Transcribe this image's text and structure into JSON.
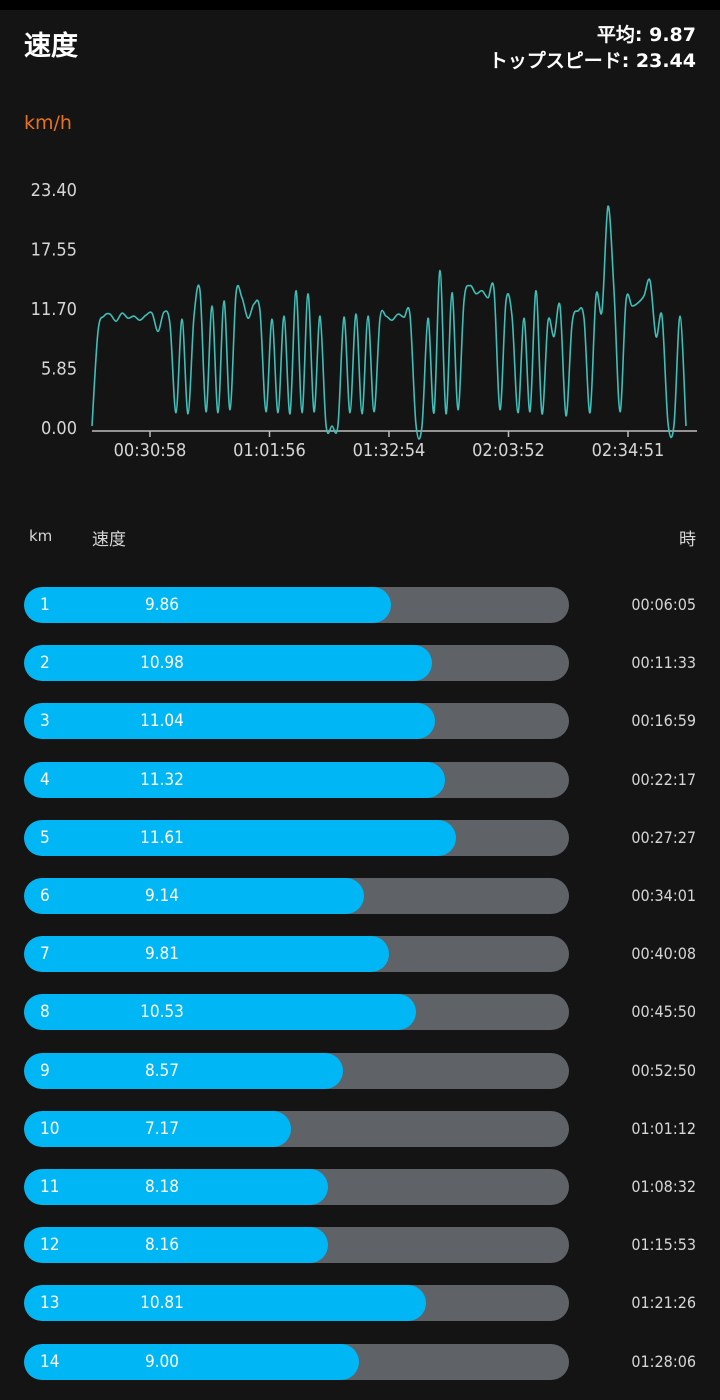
{
  "header": {
    "title": "速度",
    "average_label": "平均: 9.87",
    "top_speed_label": "トップスピード: 23.44"
  },
  "chart": {
    "unit": "km/h"
  },
  "chart_data": {
    "type": "line",
    "title": "",
    "xlabel": "",
    "ylabel": "km/h",
    "y_ticks": [
      "23.40",
      "17.55",
      "11.70",
      "5.85",
      "0.00"
    ],
    "y_tick_values": [
      23.4,
      17.55,
      11.7,
      5.85,
      0
    ],
    "x_ticks": [
      "00:30:58",
      "01:01:56",
      "01:32:54",
      "02:03:52",
      "02:34:51"
    ],
    "ylim": [
      0,
      23.4
    ],
    "grid": false,
    "legend": "none",
    "line_color": "#3fbfb8",
    "series": [
      {
        "values": [
          0.2,
          9.5,
          11.0,
          11.2,
          10.5,
          11.3,
          10.8,
          11.0,
          10.6,
          11.1,
          11.3,
          9.5,
          11.4,
          10.2,
          1.5,
          10.7,
          1.4,
          11.0,
          13.5,
          1.6,
          12.0,
          1.5,
          12.5,
          1.8,
          13.2,
          12.8,
          10.8,
          12.2,
          11.5,
          1.6,
          10.7,
          1.5,
          11.0,
          1.4,
          13.5,
          1.5,
          13.2,
          1.6,
          11.0,
          0.3,
          0.2,
          0.3,
          10.9,
          1.5,
          11.2,
          1.4,
          11.0,
          1.6,
          10.8,
          11.0,
          10.6,
          11.2,
          10.9,
          11.1,
          0.3,
          0.2,
          10.8,
          1.5,
          15.5,
          1.4,
          13.3,
          1.8,
          12.5,
          14.0,
          13.2,
          13.5,
          12.8,
          13.6,
          1.8,
          12.5,
          11.0,
          1.5,
          10.8,
          1.6,
          13.5,
          1.4,
          10.5,
          9.0,
          12.0,
          1.2,
          10.2,
          11.5,
          10.8,
          1.5,
          13.0,
          11.5,
          21.8,
          13.5,
          1.6,
          12.5,
          12.0,
          12.3,
          13.0,
          14.5,
          9.0,
          11.0,
          0.5,
          0.3,
          11.0,
          0.2
        ]
      }
    ]
  },
  "table": {
    "col_km": "km",
    "col_speed": "速度",
    "col_time": "時",
    "max_speed": 14.65,
    "rows": [
      {
        "km": "1",
        "speed": "9.86",
        "speed_value": 9.86,
        "time": "00:06:05"
      },
      {
        "km": "2",
        "speed": "10.98",
        "speed_value": 10.98,
        "time": "00:11:33"
      },
      {
        "km": "3",
        "speed": "11.04",
        "speed_value": 11.04,
        "time": "00:16:59"
      },
      {
        "km": "4",
        "speed": "11.32",
        "speed_value": 11.32,
        "time": "00:22:17"
      },
      {
        "km": "5",
        "speed": "11.61",
        "speed_value": 11.61,
        "time": "00:27:27"
      },
      {
        "km": "6",
        "speed": "9.14",
        "speed_value": 9.14,
        "time": "00:34:01"
      },
      {
        "km": "7",
        "speed": "9.81",
        "speed_value": 9.81,
        "time": "00:40:08"
      },
      {
        "km": "8",
        "speed": "10.53",
        "speed_value": 10.53,
        "time": "00:45:50"
      },
      {
        "km": "9",
        "speed": "8.57",
        "speed_value": 8.57,
        "time": "00:52:50"
      },
      {
        "km": "10",
        "speed": "7.17",
        "speed_value": 7.17,
        "time": "01:01:12"
      },
      {
        "km": "11",
        "speed": "8.18",
        "speed_value": 8.18,
        "time": "01:08:32"
      },
      {
        "km": "12",
        "speed": "8.16",
        "speed_value": 8.16,
        "time": "01:15:53"
      },
      {
        "km": "13",
        "speed": "10.81",
        "speed_value": 10.81,
        "time": "01:21:26"
      },
      {
        "km": "14",
        "speed": "9.00",
        "speed_value": 9.0,
        "time": "01:28:06"
      }
    ]
  },
  "colors": {
    "bar_fill": "#00b6f5",
    "bar_track": "#5f6367",
    "unit_accent": "#e8721e"
  }
}
